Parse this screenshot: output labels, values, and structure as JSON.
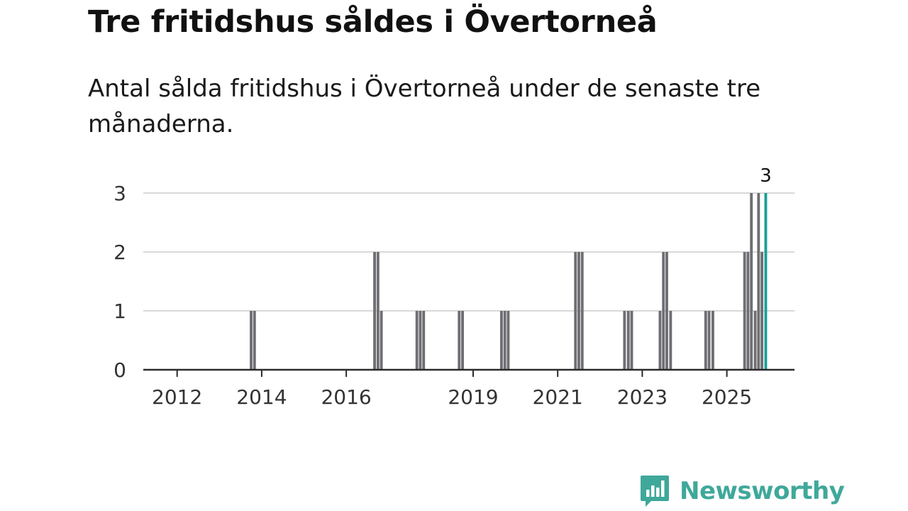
{
  "title": "Tre fritidshus såldes i Övertorneå",
  "subtitle": "Antal sålda fritidshus i Övertorneå under de senaste tre månaderna.",
  "brand": {
    "name": "Newsworthy",
    "color": "#3fa89a",
    "icon": "bar-chart-speech-bubble-icon"
  },
  "colors": {
    "bar": "#6e6e73",
    "highlight": "#17a097",
    "grid": "#d9d9d9",
    "axis": "#2b2b2b"
  },
  "chart_data": {
    "type": "bar",
    "title": "Tre fritidshus såldes i Övertorneå",
    "subtitle": "Antal sålda fritidshus i Övertorneå under de senaste tre månaderna.",
    "xlabel": "",
    "ylabel": "",
    "ylim": [
      0,
      3
    ],
    "yticks": [
      0,
      1,
      2,
      3
    ],
    "xticks": [
      {
        "label": "2012",
        "x": 2012.0
      },
      {
        "label": "2014",
        "x": 2014.0
      },
      {
        "label": "2016",
        "x": 2016.0
      },
      {
        "label": "2019",
        "x": 2019.0
      },
      {
        "label": "2021",
        "x": 2021.0
      },
      {
        "label": "2023",
        "x": 2023.0
      },
      {
        "label": "2025",
        "x": 2025.0
      }
    ],
    "xlim": [
      2011.2,
      2026.6
    ],
    "grid": true,
    "bar_width_years": 0.065,
    "series": [
      {
        "name": "Antal sålda fritidshus",
        "points": [
          {
            "x": 2013.75,
            "value": 1
          },
          {
            "x": 2013.83,
            "value": 1
          },
          {
            "x": 2016.67,
            "value": 2
          },
          {
            "x": 2016.75,
            "value": 2
          },
          {
            "x": 2016.83,
            "value": 1
          },
          {
            "x": 2017.67,
            "value": 1
          },
          {
            "x": 2017.75,
            "value": 1
          },
          {
            "x": 2017.83,
            "value": 1
          },
          {
            "x": 2018.67,
            "value": 1
          },
          {
            "x": 2018.75,
            "value": 1
          },
          {
            "x": 2019.67,
            "value": 1
          },
          {
            "x": 2019.75,
            "value": 1
          },
          {
            "x": 2019.83,
            "value": 1
          },
          {
            "x": 2021.42,
            "value": 2
          },
          {
            "x": 2021.5,
            "value": 2
          },
          {
            "x": 2021.58,
            "value": 2
          },
          {
            "x": 2022.58,
            "value": 1
          },
          {
            "x": 2022.67,
            "value": 1
          },
          {
            "x": 2022.75,
            "value": 1
          },
          {
            "x": 2023.42,
            "value": 1
          },
          {
            "x": 2023.5,
            "value": 2
          },
          {
            "x": 2023.58,
            "value": 2
          },
          {
            "x": 2023.67,
            "value": 1
          },
          {
            "x": 2024.5,
            "value": 1
          },
          {
            "x": 2024.58,
            "value": 1
          },
          {
            "x": 2024.67,
            "value": 1
          },
          {
            "x": 2025.42,
            "value": 2
          },
          {
            "x": 2025.5,
            "value": 2
          },
          {
            "x": 2025.58,
            "value": 3
          },
          {
            "x": 2025.67,
            "value": 1
          },
          {
            "x": 2025.75,
            "value": 3
          },
          {
            "x": 2025.83,
            "value": 2
          },
          {
            "x": 2025.92,
            "value": 3,
            "highlight": true,
            "label": "3"
          }
        ]
      }
    ]
  }
}
